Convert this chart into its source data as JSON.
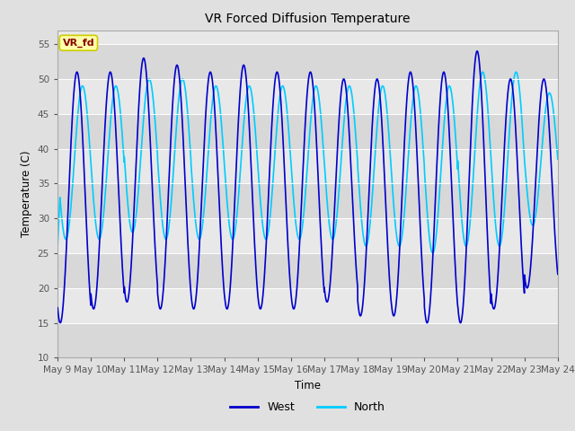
{
  "title": "VR Forced Diffusion Temperature",
  "xlabel": "Time",
  "ylabel": "Temperature (C)",
  "ylim": [
    10,
    57
  ],
  "yticks": [
    10,
    15,
    20,
    25,
    30,
    35,
    40,
    45,
    50,
    55
  ],
  "fig_bg_color": "#e0e0e0",
  "plot_bg_color": "#e8e8e8",
  "west_color": "#0000cc",
  "north_color": "#00ccff",
  "annotation_text": "VR_fd",
  "annotation_bg": "#ffffaa",
  "annotation_border": "#cccc00",
  "annotation_text_color": "#880000",
  "legend_west_label": "West",
  "legend_north_label": "North",
  "band_colors": [
    "#d8d8d8",
    "#e8e8e8"
  ],
  "grid_color": "#c8c8c8"
}
